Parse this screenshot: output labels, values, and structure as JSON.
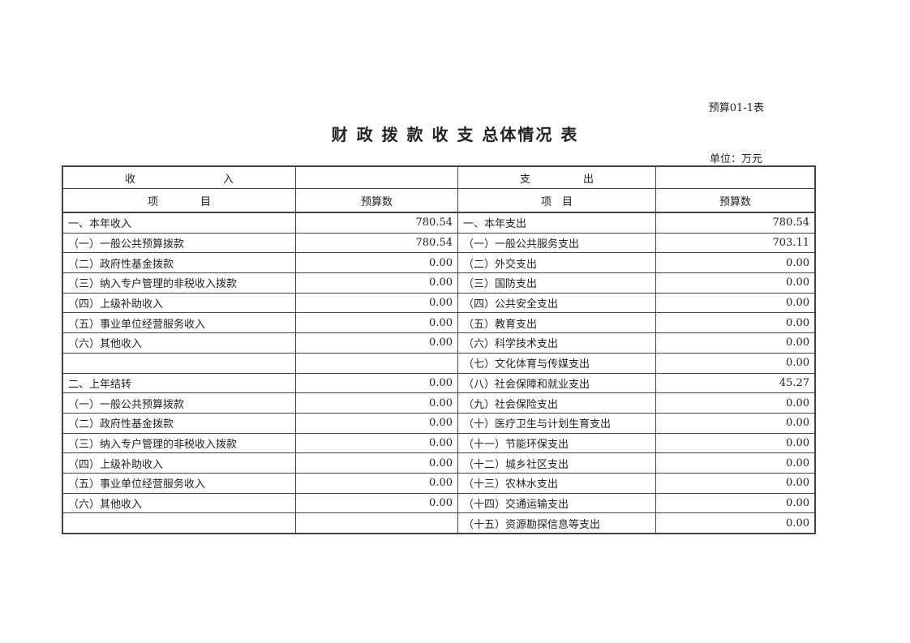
{
  "form_number": "预算01-1表",
  "title": "财 政 拨 款 收 支 总体情况 表",
  "unit": "单位：万元",
  "header": {
    "income_left": "收",
    "income_right": "入",
    "expense_left": "支",
    "expense_right": "出",
    "item_income": "项　　　　目",
    "budget_income": "预算数",
    "item_expense": "项　目",
    "budget_expense": "预算数"
  },
  "rows": [
    {
      "income_item": "一、本年收入",
      "income_value": "780.54",
      "expense_item": "一、本年支出",
      "expense_value": "780.54"
    },
    {
      "income_item": "（一）一般公共预算拨款",
      "income_value": "780.54",
      "expense_item": "（一）一般公共服务支出",
      "expense_value": "703.11"
    },
    {
      "income_item": "（二）政府性基金拨款",
      "income_value": "0.00",
      "expense_item": "（二）外交支出",
      "expense_value": "0.00"
    },
    {
      "income_item": "（三）纳入专户管理的非税收入拨款",
      "income_value": "0.00",
      "expense_item": "（三）国防支出",
      "expense_value": "0.00"
    },
    {
      "income_item": "（四）上级补助收入",
      "income_value": "0.00",
      "expense_item": "（四）公共安全支出",
      "expense_value": "0.00"
    },
    {
      "income_item": "（五）事业单位经营服务收入",
      "income_value": "0.00",
      "expense_item": "（五）教育支出",
      "expense_value": "0.00"
    },
    {
      "income_item": "（六）其他收入",
      "income_value": "0.00",
      "expense_item": "（六）科学技术支出",
      "expense_value": "0.00"
    },
    {
      "income_item": "",
      "income_value": "",
      "expense_item": "（七）文化体育与传媒支出",
      "expense_value": "0.00"
    },
    {
      "income_item": "二、上年结转",
      "income_value": "0.00",
      "expense_item": "（八）社会保障和就业支出",
      "expense_value": "45.27"
    },
    {
      "income_item": "（一）一般公共预算拨款",
      "income_value": "0.00",
      "expense_item": "（九）社会保险支出",
      "expense_value": "0.00"
    },
    {
      "income_item": "（二）政府性基金拨款",
      "income_value": "0.00",
      "expense_item": "（十）医疗卫生与计划生育支出",
      "expense_value": "0.00"
    },
    {
      "income_item": "（三）纳入专户管理的非税收入拨款",
      "income_value": "0.00",
      "expense_item": "（十一）节能环保支出",
      "expense_value": "0.00"
    },
    {
      "income_item": "（四）上级补助收入",
      "income_value": "0.00",
      "expense_item": "（十二）城乡社区支出",
      "expense_value": "0.00"
    },
    {
      "income_item": "（五）事业单位经营服务收入",
      "income_value": "0.00",
      "expense_item": "（十三）农林水支出",
      "expense_value": "0.00"
    },
    {
      "income_item": "（六）其他收入",
      "income_value": "0.00",
      "expense_item": "（十四）交通运输支出",
      "expense_value": "0.00"
    },
    {
      "income_item": "",
      "income_value": "",
      "expense_item": "（十五）资源勘探信息等支出",
      "expense_value": "0.00"
    }
  ]
}
